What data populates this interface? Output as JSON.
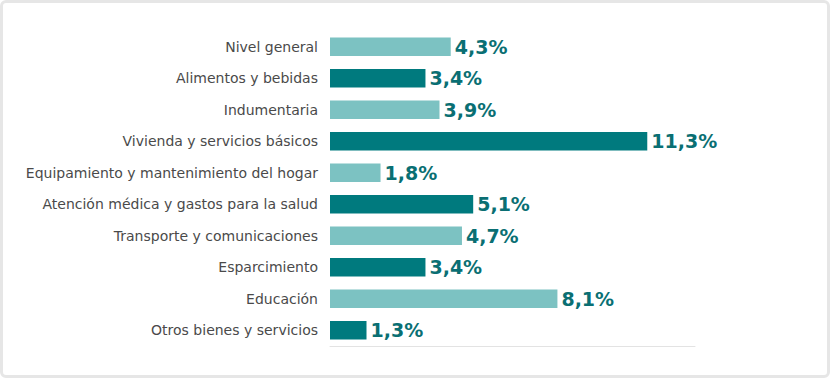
{
  "chart_data": {
    "type": "bar",
    "orientation": "horizontal",
    "categories": [
      "Nivel general",
      "Alimentos y bebidas",
      "Indumentaria",
      "Vivienda y servicios básicos",
      "Equipamiento y mantenimiento del hogar",
      "Atención médica y gastos para la salud",
      "Transporte y comunicaciones",
      "Esparcimiento",
      "Educación",
      "Otros bienes y servicios"
    ],
    "values": [
      4.3,
      3.4,
      3.9,
      11.3,
      1.8,
      5.1,
      4.7,
      3.4,
      8.1,
      1.3
    ],
    "value_labels": [
      "4,3%",
      "3,4%",
      "3,9%",
      "11,3%",
      "1,8%",
      "5,1%",
      "4,7%",
      "3,4%",
      "8,1%",
      "1,3%"
    ],
    "colors": [
      "#7cc2c2",
      "#007a7e",
      "#7cc2c2",
      "#007a7e",
      "#7cc2c2",
      "#007a7e",
      "#7cc2c2",
      "#007a7e",
      "#7cc2c2",
      "#007a7e"
    ],
    "xlim": [
      0,
      13
    ],
    "data_labels": true,
    "tick_labels": "y",
    "grid": false
  }
}
